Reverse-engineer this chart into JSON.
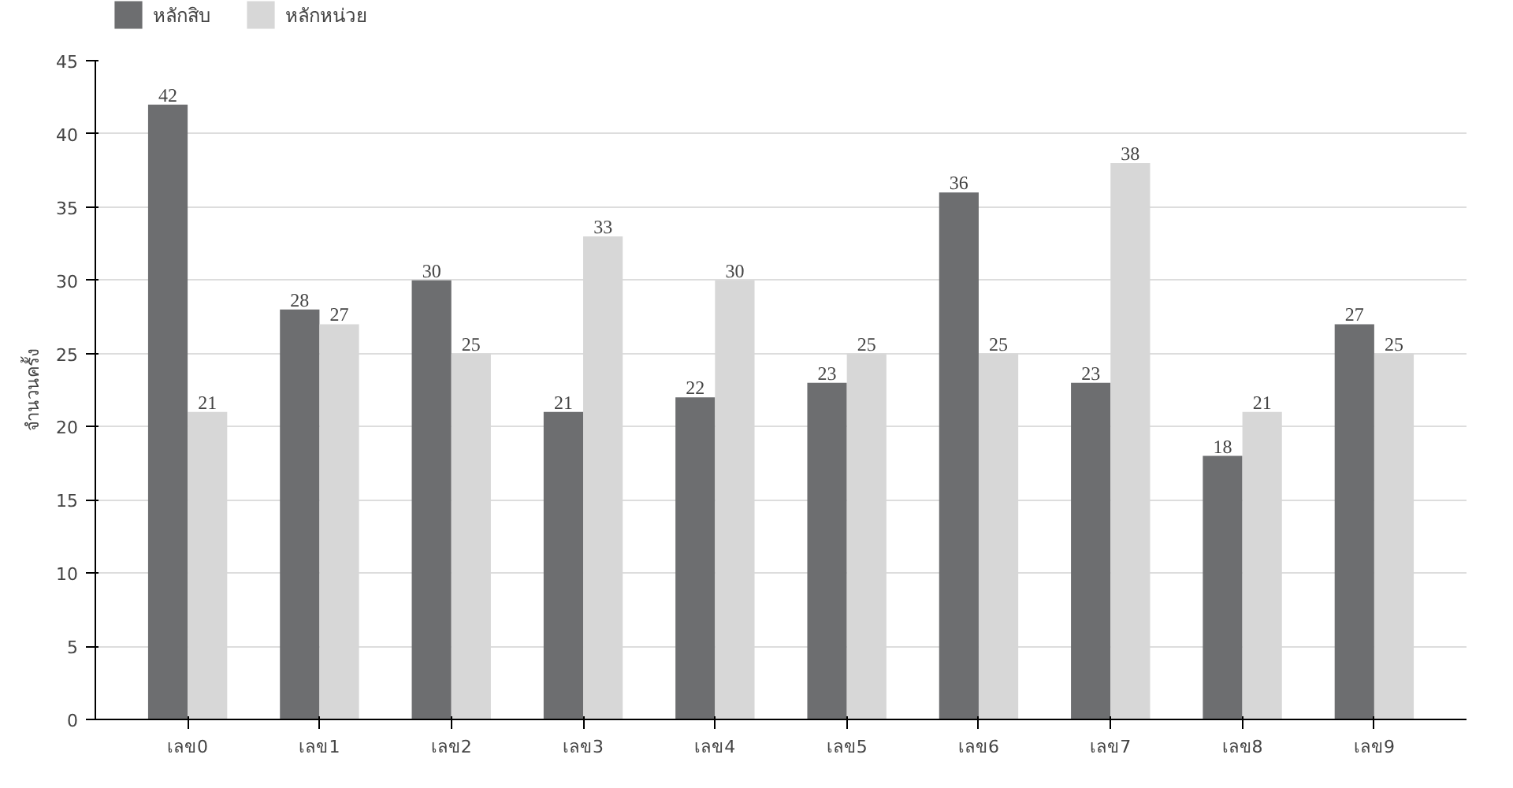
{
  "chart_data": {
    "type": "bar",
    "ylabel": "จำนวนครั้ง",
    "categories": [
      "เลข0",
      "เลข1",
      "เลข2",
      "เลข3",
      "เลข4",
      "เลข5",
      "เลข6",
      "เลข7",
      "เลข8",
      "เลข9"
    ],
    "series": [
      {
        "name": "หลักสิบ",
        "color": "#6d6e70",
        "values": [
          42,
          28,
          30,
          21,
          22,
          23,
          36,
          23,
          18,
          27
        ]
      },
      {
        "name": "หลักหน่วย",
        "color": "#d7d7d7",
        "values": [
          21,
          27,
          25,
          33,
          30,
          25,
          25,
          38,
          21,
          25
        ]
      }
    ],
    "ylim": [
      0,
      45
    ],
    "yticks": [
      0,
      5,
      10,
      15,
      20,
      25,
      30,
      35,
      40,
      45
    ],
    "grid": "y",
    "legend": "top left",
    "data_labels": true
  }
}
